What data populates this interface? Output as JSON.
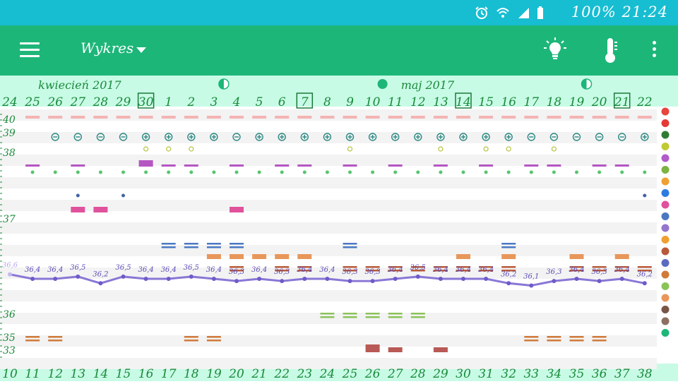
{
  "status_bar": {
    "text": "100% 21:24",
    "icons": [
      "alarm-icon",
      "wifi-icon",
      "signal-icon",
      "battery-icon"
    ]
  },
  "app_bar": {
    "title": "Wykres",
    "actions": [
      "menu-icon",
      "lightbulb-icon",
      "thermometer-icon",
      "more-vert-icon"
    ]
  },
  "months": [
    {
      "label": "kwiecień 2017",
      "col": 1
    },
    {
      "label": "maj 2017",
      "col": 17
    }
  ],
  "moon_phases": [
    {
      "col": 9,
      "type": "half"
    },
    {
      "col": 16,
      "type": "full"
    },
    {
      "col": 25,
      "type": "half"
    }
  ],
  "dates": [
    "24",
    "25",
    "26",
    "27",
    "28",
    "29",
    "30",
    "1",
    "2",
    "3",
    "4",
    "5",
    "6",
    "7",
    "8",
    "9",
    "10",
    "11",
    "12",
    "13",
    "14",
    "15",
    "16",
    "17",
    "18",
    "19",
    "20",
    "21",
    "22"
  ],
  "boxed_dates": [
    "30",
    "7",
    "14",
    "21"
  ],
  "cycle_days": [
    "10",
    "11",
    "12",
    "13",
    "14",
    "15",
    "16",
    "17",
    "18",
    "19",
    "20",
    "21",
    "22",
    "23",
    "24",
    "25",
    "26",
    "27",
    "28",
    "29",
    "30",
    "31",
    "32",
    "33",
    "34",
    "35",
    "36",
    "37",
    "38"
  ],
  "axis_labels": [
    "40",
    "39",
    "38",
    "37",
    "36",
    "35",
    "33"
  ],
  "chart_data": {
    "type": "line",
    "title": "",
    "xlabel": "",
    "ylabel": "",
    "x": [
      "24",
      "25",
      "26",
      "27",
      "28",
      "29",
      "30",
      "1",
      "2",
      "3",
      "4",
      "5",
      "6",
      "7",
      "8",
      "9",
      "10",
      "11",
      "12",
      "13",
      "14",
      "15",
      "16",
      "17",
      "18",
      "19",
      "20",
      "21",
      "22"
    ],
    "series": [
      {
        "values": [
          36.6,
          36.4,
          36.4,
          36.5,
          36.2,
          36.5,
          36.4,
          36.4,
          36.5,
          36.4,
          36.3,
          36.4,
          36.3,
          36.4,
          36.4,
          36.3,
          36.3,
          36.4,
          36.5,
          36.4,
          36.4,
          36.4,
          36.2,
          36.1,
          36.3,
          36.4,
          36.3,
          36.4,
          36.2
        ]
      }
    ],
    "point_labels": [
      "36,6",
      "36,4",
      "36,4",
      "36,5",
      "36,2",
      "36,5",
      "36,4",
      "36,4",
      "36,5",
      "36,4",
      "36,3",
      "36,4",
      "36,3",
      "36,4",
      "36,4",
      "36,3",
      "36,3",
      "36,4",
      "36,5",
      "36,4",
      "36,4",
      "36,4",
      "36,2",
      "36,1",
      "36,3",
      "36,4",
      "36,3",
      "36,4",
      "36,2"
    ]
  },
  "rows": {
    "pink_top_cols": [
      1,
      2,
      3,
      4,
      5,
      6,
      7,
      8,
      9,
      10,
      11,
      12,
      13,
      14,
      15,
      16,
      17,
      18,
      19,
      20,
      21,
      22,
      23,
      24,
      25,
      26,
      27,
      28
    ],
    "minus_cols": [
      2,
      3,
      4,
      5,
      10,
      23,
      24,
      25,
      26,
      27
    ],
    "plus_cols": [
      6,
      7,
      8,
      9,
      11,
      12,
      13,
      14,
      15,
      16,
      17,
      18,
      19,
      20,
      21,
      22,
      28
    ],
    "small_circle_cols": [
      6,
      7,
      8,
      15,
      19,
      21,
      22,
      24
    ],
    "purple_cols": [
      1,
      3,
      6,
      7,
      8,
      10,
      12,
      13,
      15,
      17,
      19,
      21,
      23,
      24,
      26,
      27
    ],
    "green_dot_cols": [
      1,
      2,
      3,
      4,
      5,
      6,
      7,
      8,
      9,
      10,
      11,
      12,
      13,
      14,
      15,
      16,
      17,
      18,
      19,
      20,
      21,
      22,
      23,
      24,
      25,
      26,
      27,
      28
    ],
    "blue_dot_cols": [
      3,
      5,
      28
    ],
    "pink_mid_cols": [
      3,
      4,
      10
    ],
    "blue_lines_cols": [
      7,
      8,
      9,
      10,
      15,
      22
    ],
    "orange_cols": [
      9,
      10,
      11,
      12,
      13,
      20,
      22,
      25,
      27
    ],
    "brown_cols": [
      10,
      12,
      13,
      15,
      16,
      17,
      18,
      19,
      20,
      21,
      22,
      25,
      26,
      27,
      28
    ],
    "light_green_cols": [
      14,
      15,
      16,
      17,
      18
    ],
    "orange_low_cols": [
      1,
      2,
      8,
      9,
      23,
      24,
      25,
      26
    ],
    "dark_red_cols": [
      16,
      17,
      19
    ]
  }
}
